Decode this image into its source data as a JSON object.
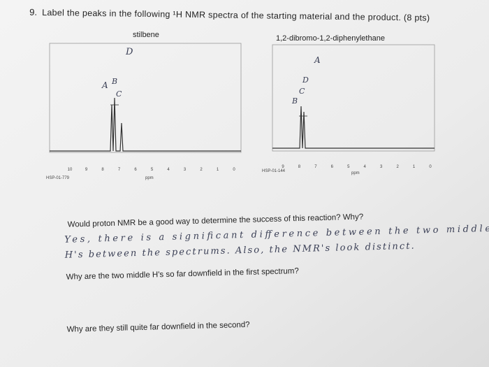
{
  "question": {
    "number": "9.",
    "text": "Label the peaks in the following ¹H NMR spectra of the starting material and the product. (8 pts)"
  },
  "spectra": [
    {
      "name": "stilbene",
      "ticks": [
        "10",
        "9",
        "8",
        "7",
        "6",
        "5",
        "4",
        "3",
        "2",
        "1",
        "0"
      ],
      "unit": "ppm",
      "code": "HSP-01-779",
      "labels": [
        "D",
        "A",
        "B",
        "C"
      ]
    },
    {
      "name": "1,2-dibromo-1,2-diphenylethane",
      "ticks": [
        "9",
        "8",
        "7",
        "6",
        "5",
        "4",
        "3",
        "2",
        "1",
        "0"
      ],
      "unit": "ppm",
      "code": "HSP-01-144",
      "labels": [
        "A",
        "D",
        "B",
        "C"
      ]
    }
  ],
  "questions": [
    {
      "text": "Would proton NMR be a good way to determine the success of this reaction? Why?",
      "answer": [
        "Yes, there is a significant difference between the two middle",
        "H's between the spectrums. Also, the NMR's look distinct."
      ]
    },
    {
      "text": "Why are the two middle H's so far downfield in the first spectrum?"
    },
    {
      "text": "Why are they still quite far downfield in the second?"
    }
  ]
}
